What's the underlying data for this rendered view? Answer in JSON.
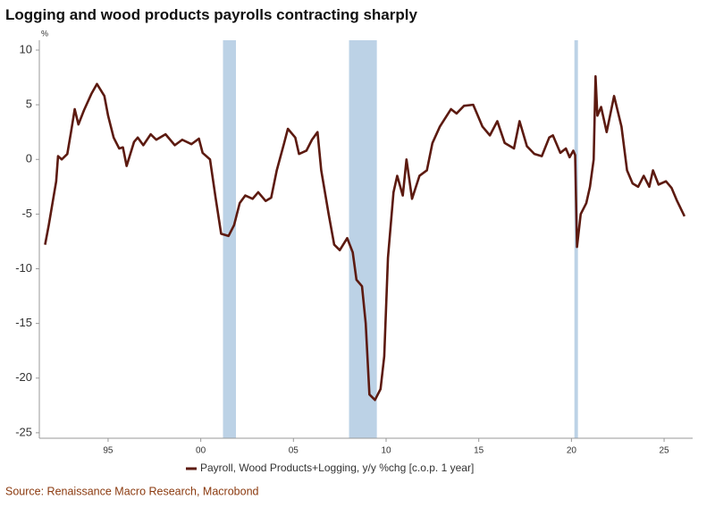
{
  "chart_data": {
    "type": "line",
    "title": "Logging and wood products payrolls contracting sharply",
    "y_unit": "%",
    "source": "Source: Renaissance Macro Research, Macrobond",
    "xlim": [
      1991.29,
      2026.54
    ],
    "ylim": [
      -25.5,
      10.9
    ],
    "xticks": [
      {
        "value": 1995,
        "label": "95"
      },
      {
        "value": 2000,
        "label": "00"
      },
      {
        "value": 2005,
        "label": "05"
      },
      {
        "value": 2010,
        "label": "10"
      },
      {
        "value": 2015,
        "label": "15"
      },
      {
        "value": 2020,
        "label": "20"
      },
      {
        "value": 2025,
        "label": "25"
      }
    ],
    "yticks": [
      10,
      5,
      0,
      -5,
      -10,
      -15,
      -20,
      -25
    ],
    "recessions": [
      [
        2001.2,
        2001.9
      ],
      [
        2008.0,
        2009.5
      ],
      [
        2020.16,
        2020.35
      ]
    ],
    "recession_color": "#bcd2e6",
    "x": [
      1991.6,
      1991.8,
      1992.0,
      1992.2,
      1992.3,
      1992.5,
      1992.8,
      1993.0,
      1993.2,
      1993.4,
      1993.7,
      1994.1,
      1994.4,
      1994.8,
      1995.0,
      1995.3,
      1995.6,
      1995.8,
      1996.0,
      1996.4,
      1996.6,
      1996.9,
      1997.3,
      1997.6,
      1998.1,
      1998.6,
      1999.0,
      1999.5,
      1999.9,
      2000.1,
      2000.5,
      2000.8,
      2001.1,
      2001.5,
      2001.8,
      2002.1,
      2002.4,
      2002.8,
      2003.1,
      2003.5,
      2003.8,
      2004.1,
      2004.5,
      2004.7,
      2005.1,
      2005.3,
      2005.7,
      2006.0,
      2006.3,
      2006.5,
      2006.9,
      2007.2,
      2007.5,
      2007.9,
      2008.2,
      2008.4,
      2008.7,
      2008.9,
      2009.1,
      2009.4,
      2009.7,
      2009.9,
      2010.1,
      2010.4,
      2010.6,
      2010.9,
      2011.1,
      2011.4,
      2011.8,
      2012.2,
      2012.5,
      2012.9,
      2013.5,
      2013.8,
      2014.2,
      2014.7,
      2015.2,
      2015.6,
      2016.0,
      2016.4,
      2016.9,
      2017.2,
      2017.6,
      2018.0,
      2018.4,
      2018.8,
      2019.0,
      2019.4,
      2019.7,
      2019.9,
      2020.1,
      2020.2,
      2020.3,
      2020.5,
      2020.8,
      2021.0,
      2021.2,
      2021.3,
      2021.4,
      2021.6,
      2021.9,
      2022.3,
      2022.7,
      2023.0,
      2023.3,
      2023.6,
      2023.9,
      2024.2,
      2024.4,
      2024.7,
      2025.1,
      2025.4,
      2025.7,
      2026.1
    ],
    "series": [
      {
        "name": "Payroll, Wood Products+Logging, y/y %chg [c.o.p. 1 year]",
        "color": "#5c1a10",
        "values": [
          -7.8,
          -6,
          -4,
          -2,
          0.3,
          0,
          0.5,
          2.5,
          4.6,
          3.2,
          4.5,
          6,
          6.9,
          5.8,
          4,
          2,
          1,
          1.1,
          -0.6,
          1.6,
          2,
          1.3,
          2.3,
          1.8,
          2.3,
          1.3,
          1.8,
          1.4,
          1.9,
          0.6,
          0,
          -3.5,
          -6.8,
          -7,
          -6,
          -4,
          -3.3,
          -3.6,
          -3,
          -3.8,
          -3.5,
          -1,
          1.5,
          2.8,
          2,
          0.5,
          0.8,
          1.8,
          2.5,
          -1,
          -5,
          -7.8,
          -8.3,
          -7.2,
          -8.5,
          -11,
          -11.6,
          -15,
          -21.5,
          -22,
          -21,
          -18,
          -9,
          -3,
          -1.5,
          -3.3,
          0,
          -3.6,
          -1.5,
          -1,
          1.5,
          3,
          4.6,
          4.2,
          4.9,
          5,
          3,
          2.2,
          3.5,
          1.5,
          1,
          3.5,
          1.2,
          0.5,
          0.3,
          2,
          2.2,
          0.6,
          1,
          0.2,
          0.8,
          0.4,
          -8,
          -5,
          -4,
          -2.5,
          0,
          7.6,
          4,
          4.8,
          2.5,
          5.8,
          3,
          -1,
          -2.2,
          -2.5,
          -1.5,
          -2.5,
          -1,
          -2.3,
          -2,
          -2.6,
          -3.8,
          -5.2
        ]
      }
    ]
  }
}
